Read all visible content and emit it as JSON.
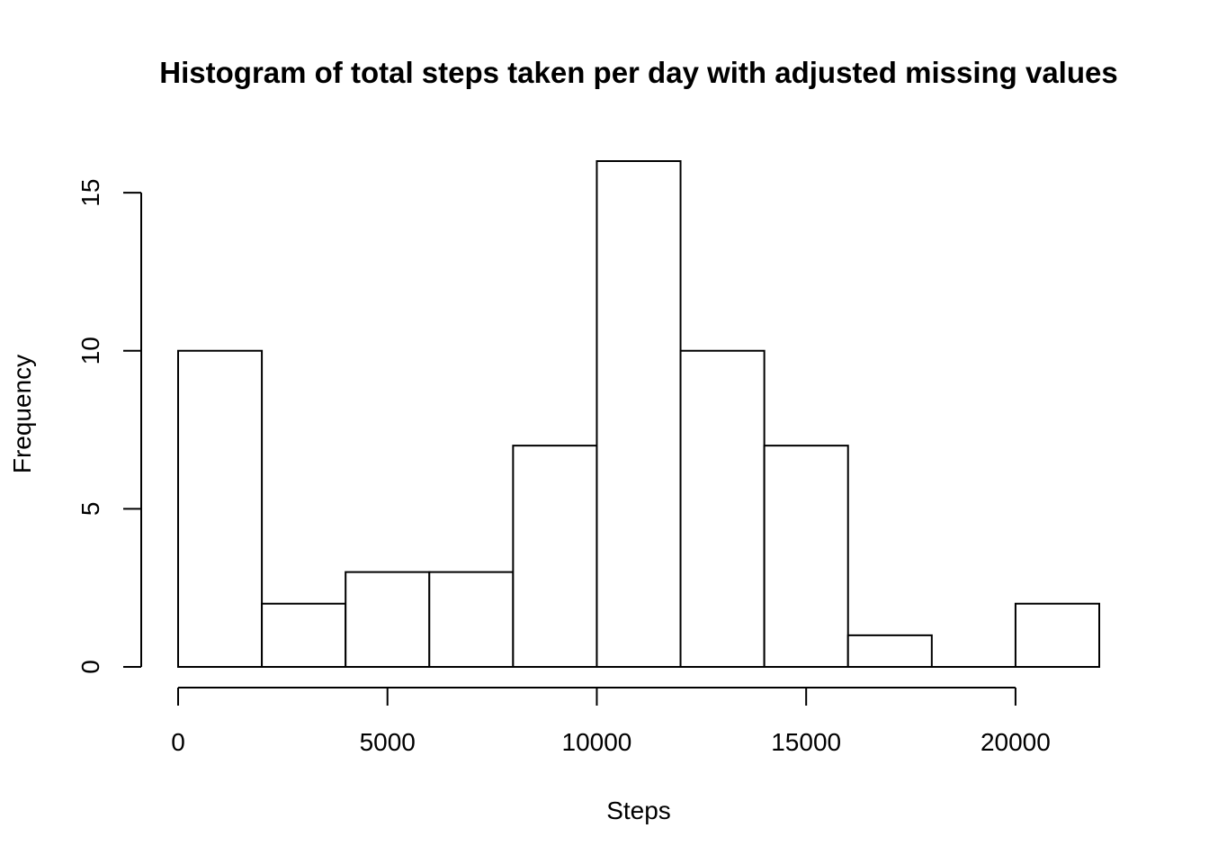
{
  "chart_data": {
    "type": "bar",
    "title": "Histogram of total steps taken per day with adjusted missing values",
    "xlabel": "Steps",
    "ylabel": "Frequency",
    "bins": [
      {
        "from": 0,
        "to": 2000,
        "count": 10
      },
      {
        "from": 2000,
        "to": 4000,
        "count": 2
      },
      {
        "from": 4000,
        "to": 6000,
        "count": 3
      },
      {
        "from": 6000,
        "to": 8000,
        "count": 3
      },
      {
        "from": 8000,
        "to": 10000,
        "count": 7
      },
      {
        "from": 10000,
        "to": 12000,
        "count": 16
      },
      {
        "from": 12000,
        "to": 14000,
        "count": 10
      },
      {
        "from": 14000,
        "to": 16000,
        "count": 7
      },
      {
        "from": 16000,
        "to": 18000,
        "count": 1
      },
      {
        "from": 18000,
        "to": 20000,
        "count": 0
      },
      {
        "from": 20000,
        "to": 22000,
        "count": 2
      }
    ],
    "xticks": [
      0,
      5000,
      10000,
      15000,
      20000
    ],
    "yticks": [
      0,
      5,
      10,
      15
    ],
    "xlim": [
      0,
      22000
    ],
    "ylim": [
      0,
      16
    ],
    "grid": false,
    "bar_fill": "#ffffff",
    "bar_stroke": "#000000"
  }
}
